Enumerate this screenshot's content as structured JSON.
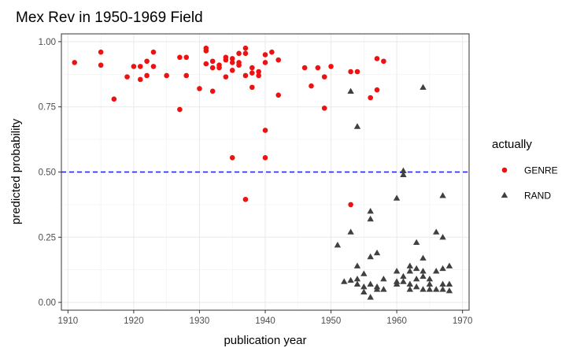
{
  "chart_data": {
    "type": "scatter",
    "title": "Mex Rev in 1950-1969 Field",
    "xlabel": "publication year",
    "ylabel": "predicted probability",
    "xlim": [
      1909,
      1971
    ],
    "ylim": [
      -0.03,
      1.03
    ],
    "x_ticks": [
      1910,
      1920,
      1930,
      1940,
      1950,
      1960,
      1970
    ],
    "x_tick_labels": [
      "1910",
      "1920",
      "1930",
      "1940",
      "1950",
      "1960",
      "1970"
    ],
    "y_ticks": [
      0.0,
      0.25,
      0.5,
      0.75,
      1.0
    ],
    "y_tick_labels": [
      "0.00",
      "0.25",
      "0.50",
      "0.75",
      "1.00"
    ],
    "grid": true,
    "reference_line": {
      "y": 0.5,
      "style": "dashed",
      "color": "#1a1aff"
    },
    "legend": {
      "title": "actually",
      "position": "right"
    },
    "series": [
      {
        "name": "GENRE",
        "marker": "circle",
        "color": "#ee1111",
        "points": [
          [
            1911,
            0.92
          ],
          [
            1915,
            0.96
          ],
          [
            1915,
            0.91
          ],
          [
            1917,
            0.78
          ],
          [
            1919,
            0.865
          ],
          [
            1920,
            0.905
          ],
          [
            1921,
            0.905
          ],
          [
            1921,
            0.855
          ],
          [
            1922,
            0.925
          ],
          [
            1922,
            0.87
          ],
          [
            1923,
            0.96
          ],
          [
            1923,
            0.905
          ],
          [
            1925,
            0.87
          ],
          [
            1927,
            0.94
          ],
          [
            1927,
            0.74
          ],
          [
            1928,
            0.94
          ],
          [
            1928,
            0.87
          ],
          [
            1930,
            0.82
          ],
          [
            1931,
            0.975
          ],
          [
            1931,
            0.965
          ],
          [
            1931,
            0.915
          ],
          [
            1932,
            0.925
          ],
          [
            1932,
            0.81
          ],
          [
            1932,
            0.9
          ],
          [
            1933,
            0.91
          ],
          [
            1933,
            0.9
          ],
          [
            1934,
            0.94
          ],
          [
            1934,
            0.93
          ],
          [
            1934,
            0.865
          ],
          [
            1935,
            0.935
          ],
          [
            1935,
            0.92
          ],
          [
            1935,
            0.89
          ],
          [
            1935,
            0.555
          ],
          [
            1936,
            0.92
          ],
          [
            1936,
            0.91
          ],
          [
            1936,
            0.955
          ],
          [
            1937,
            0.975
          ],
          [
            1937,
            0.955
          ],
          [
            1937,
            0.87
          ],
          [
            1937,
            0.395
          ],
          [
            1938,
            0.9
          ],
          [
            1938,
            0.825
          ],
          [
            1938,
            0.88
          ],
          [
            1939,
            0.885
          ],
          [
            1939,
            0.87
          ],
          [
            1940,
            0.95
          ],
          [
            1940,
            0.92
          ],
          [
            1940,
            0.66
          ],
          [
            1940,
            0.555
          ],
          [
            1941,
            0.96
          ],
          [
            1942,
            0.93
          ],
          [
            1942,
            0.795
          ],
          [
            1946,
            0.9
          ],
          [
            1947,
            0.83
          ],
          [
            1948,
            0.9
          ],
          [
            1949,
            0.865
          ],
          [
            1949,
            0.745
          ],
          [
            1950,
            0.905
          ],
          [
            1953,
            0.885
          ],
          [
            1953,
            0.375
          ],
          [
            1954,
            0.885
          ],
          [
            1956,
            0.785
          ],
          [
            1957,
            0.935
          ],
          [
            1957,
            0.815
          ],
          [
            1958,
            0.925
          ]
        ]
      },
      {
        "name": "RAND",
        "marker": "triangle",
        "color": "#404040",
        "points": [
          [
            1951,
            0.22
          ],
          [
            1952,
            0.08
          ],
          [
            1953,
            0.81
          ],
          [
            1953,
            0.27
          ],
          [
            1953,
            0.085
          ],
          [
            1954,
            0.675
          ],
          [
            1954,
            0.14
          ],
          [
            1954,
            0.09
          ],
          [
            1954,
            0.07
          ],
          [
            1955,
            0.11
          ],
          [
            1955,
            0.06
          ],
          [
            1955,
            0.04
          ],
          [
            1956,
            0.35
          ],
          [
            1956,
            0.32
          ],
          [
            1956,
            0.175
          ],
          [
            1956,
            0.07
          ],
          [
            1956,
            0.02
          ],
          [
            1957,
            0.19
          ],
          [
            1957,
            0.06
          ],
          [
            1957,
            0.05
          ],
          [
            1958,
            0.09
          ],
          [
            1958,
            0.05
          ],
          [
            1960,
            0.4
          ],
          [
            1960,
            0.12
          ],
          [
            1960,
            0.08
          ],
          [
            1960,
            0.07
          ],
          [
            1961,
            0.505
          ],
          [
            1961,
            0.49
          ],
          [
            1961,
            0.1
          ],
          [
            1961,
            0.08
          ],
          [
            1962,
            0.14
          ],
          [
            1962,
            0.12
          ],
          [
            1962,
            0.07
          ],
          [
            1962,
            0.05
          ],
          [
            1963,
            0.13
          ],
          [
            1963,
            0.23
          ],
          [
            1963,
            0.09
          ],
          [
            1963,
            0.06
          ],
          [
            1964,
            0.825
          ],
          [
            1964,
            0.17
          ],
          [
            1964,
            0.12
          ],
          [
            1964,
            0.1
          ],
          [
            1964,
            0.05
          ],
          [
            1965,
            0.09
          ],
          [
            1965,
            0.07
          ],
          [
            1965,
            0.05
          ],
          [
            1966,
            0.27
          ],
          [
            1966,
            0.12
          ],
          [
            1966,
            0.05
          ],
          [
            1967,
            0.41
          ],
          [
            1967,
            0.25
          ],
          [
            1967,
            0.13
          ],
          [
            1967,
            0.07
          ],
          [
            1967,
            0.05
          ],
          [
            1968,
            0.14
          ],
          [
            1968,
            0.07
          ],
          [
            1968,
            0.045
          ]
        ]
      }
    ]
  }
}
